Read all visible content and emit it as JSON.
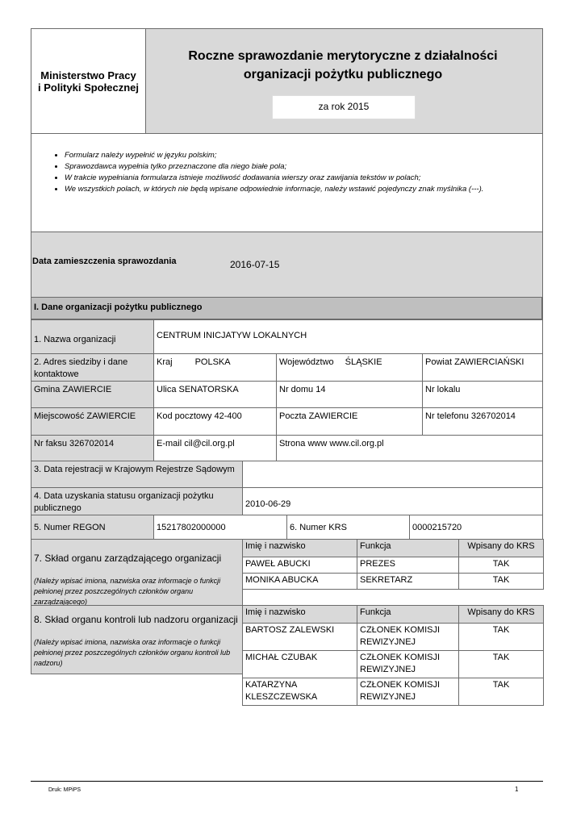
{
  "header": {
    "ministry": "Ministerstwo Pracy i Polityki Społecznej",
    "title": "Roczne sprawozdanie merytoryczne z działalności organizacji pożytku publicznego",
    "year": "za rok 2015"
  },
  "instructions": [
    "Formularz należy wypełnić w języku polskim;",
    "Sprawozdawca wypełnia tylko przeznaczone dla niego białe pola;",
    "W trakcie wypełniania formularza istnieje możliwość dodawania wierszy oraz zawijania tekstów w polach;",
    "We wszystkich polach, w których nie będą wpisane odpowiednie informacje, należy wstawić pojedynczy znak myślnika (---)."
  ],
  "publication": {
    "label": "Data zamieszczenia sprawozdania",
    "value": "2016-07-15"
  },
  "section1": {
    "title": "I. Dane organizacji pożytku publicznego",
    "name_label": "1. Nazwa organizacji",
    "name": "CENTRUM INICJATYW LOKALNYCH",
    "address_label": "2. Adres siedziby i dane kontaktowe",
    "country_label": "Kraj",
    "country": "POLSKA",
    "voivodeship_label": "Województwo",
    "voivodeship": "ŚLĄSKIE",
    "district": "Powiat ZAWIERCIAŃSKI",
    "commune": "Gmina ZAWIERCIE",
    "street": "Ulica SENATORSKA",
    "house": "Nr domu 14",
    "flat": "Nr lokalu",
    "city": "Miejscowość ZAWIERCIE",
    "postcode": "Kod pocztowy 42-400",
    "post": "Poczta ZAWIERCIE",
    "phone": "Nr telefonu 326702014",
    "fax": "Nr faksu 326702014",
    "email": "E-mail cil@cil.org.pl",
    "www": "Strona www www.cil.org.pl",
    "krs_reg_label": "3. Data rejestracji w Krajowym Rejestrze Sądowym",
    "krs_reg": "",
    "opp_label": "4. Data uzyskania statusu organizacji pożytku publicznego",
    "opp": "2010-06-29",
    "regon_label": "5. Numer REGON",
    "regon": "15217802000000",
    "krs_label": "6. Numer KRS",
    "krs": "0000215720"
  },
  "board": {
    "label": "7. Skład organu zarządzającego organizacji",
    "note": "(Należy wpisać imiona, nazwiska oraz informacje o funkcji pełnionej przez poszczególnych członków organu zarządzającego)",
    "headers": [
      "Imię i nazwisko",
      "Funkcja",
      "Wpisany do KRS"
    ],
    "rows": [
      [
        "PAWEŁ  ABUCKI",
        "PREZES",
        "TAK"
      ],
      [
        "MONIKA  ABUCKA",
        "SEKRETARZ",
        "TAK"
      ]
    ]
  },
  "supervisory": {
    "label": "8. Skład organu kontroli lub nadzoru organizacji",
    "note": "(Należy wpisać imiona, nazwiska oraz informacje o funkcji pełnionej przez poszczególnych członków organu kontroli lub nadzoru)",
    "headers": [
      "Imię i nazwisko",
      "Funkcja",
      "Wpisany do KRS"
    ],
    "rows": [
      [
        "BARTOSZ ZALEWSKI",
        "CZŁONEK KOMISJI REWIZYJNEJ",
        "TAK"
      ],
      [
        "MICHAŁ CZUBAK",
        "CZŁONEK KOMISJI REWIZYJNEJ",
        "TAK"
      ],
      [
        "KATARZYNA KLESZCZEWSKA",
        "CZŁONEK KOMISJI REWIZYJNEJ",
        "TAK"
      ]
    ]
  },
  "footer": {
    "print": "Druk: MPiPS",
    "page": "1"
  }
}
